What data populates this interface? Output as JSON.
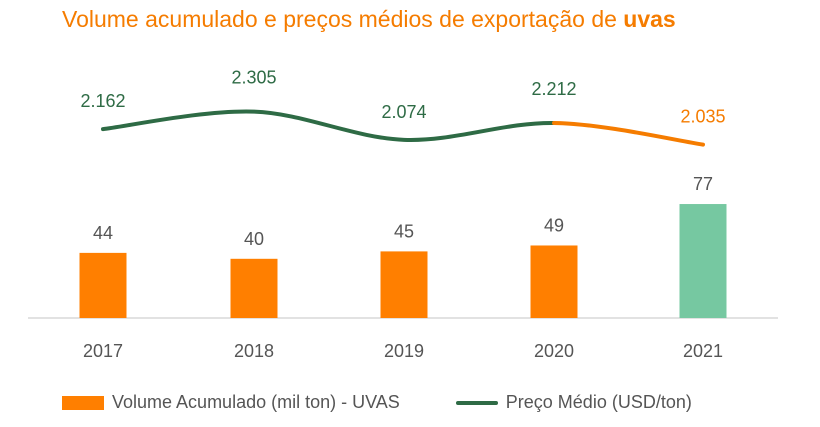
{
  "title_main": "Volume acumulado e preços médios de exportação de ",
  "title_bold": "uvas",
  "colors": {
    "bar": "#ff7f00",
    "bar_highlight": "#76c8a1",
    "line": "#2e6b45",
    "line_highlight": "#f57c00",
    "title": "#f57c00",
    "label": "#555555",
    "axis": "#d9d9d9"
  },
  "chart_data": {
    "type": "bar",
    "categories": [
      "2017",
      "2018",
      "2019",
      "2020",
      "2021"
    ],
    "series": [
      {
        "name": "Volume Acumulado (mil ton) - UVAS",
        "type": "bar",
        "values": [
          44,
          40,
          45,
          49,
          77
        ],
        "labels": [
          "44",
          "40",
          "45",
          "49",
          "77"
        ]
      },
      {
        "name": "Preço Médio (USD/ton)",
        "type": "line",
        "values": [
          2162,
          2305,
          2074,
          2212,
          2035
        ],
        "labels": [
          "2.162",
          "2.305",
          "2.074",
          "2.212",
          "2.035"
        ]
      }
    ],
    "highlight_index": 4,
    "legend_position": "bottom",
    "grid": false
  }
}
